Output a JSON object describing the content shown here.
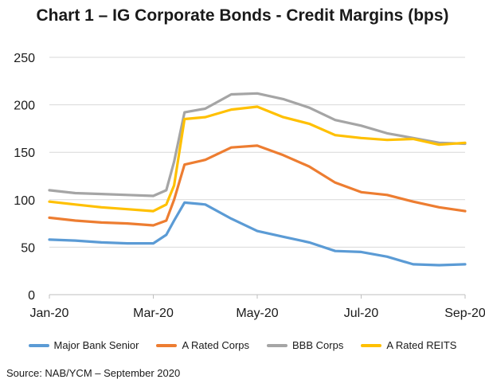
{
  "chart_data": {
    "type": "line",
    "title": "Chart 1 – IG Corporate Bonds - Credit Margins (bps)",
    "xlabel": "",
    "ylabel": "",
    "ylim": [
      0,
      250
    ],
    "y_ticks": [
      "0",
      "50",
      "100",
      "150",
      "200",
      "250"
    ],
    "x_ticks": [
      "Jan-20",
      "Mar-20",
      "May-20",
      "Jul-20",
      "Sep-20"
    ],
    "grid": true,
    "legend_position": "bottom",
    "x": [
      "Jan-20",
      "Jan-20",
      "Feb-20",
      "Feb-20",
      "Mar-20",
      "Mar-20",
      "Mar-20",
      "Mar-20",
      "Apr-20",
      "Apr-20",
      "May-20",
      "May-20",
      "Jun-20",
      "Jun-20",
      "Jul-20",
      "Jul-20",
      "Aug-20",
      "Aug-20",
      "Sep-20"
    ],
    "x_index": [
      0,
      0.5,
      1,
      1.5,
      2,
      2.25,
      2.4,
      2.6,
      3,
      3.5,
      4,
      4.5,
      5,
      5.5,
      6,
      6.5,
      7,
      7.5,
      8
    ],
    "series": [
      {
        "name": "Major Bank Senior",
        "color": "#5B9BD5",
        "values": [
          58,
          57,
          55,
          54,
          54,
          63,
          78,
          97,
          95,
          80,
          67,
          61,
          55,
          46,
          45,
          40,
          32,
          31,
          32
        ]
      },
      {
        "name": "A Rated Corps",
        "color": "#ED7D31",
        "values": [
          81,
          78,
          76,
          75,
          73,
          78,
          100,
          137,
          142,
          155,
          157,
          147,
          135,
          118,
          108,
          105,
          98,
          92,
          88
        ]
      },
      {
        "name": "BBB Corps",
        "color": "#A5A5A5",
        "values": [
          110,
          107,
          106,
          105,
          104,
          110,
          140,
          192,
          196,
          211,
          212,
          206,
          197,
          184,
          178,
          170,
          165,
          160,
          159
        ]
      },
      {
        "name": "A Rated REITS",
        "color": "#FFC000",
        "values": [
          98,
          95,
          92,
          90,
          88,
          95,
          115,
          185,
          187,
          195,
          198,
          187,
          180,
          168,
          165,
          163,
          164,
          158,
          160
        ]
      }
    ]
  },
  "footer": {
    "source": "Source: NAB/YCM – September 2020"
  }
}
